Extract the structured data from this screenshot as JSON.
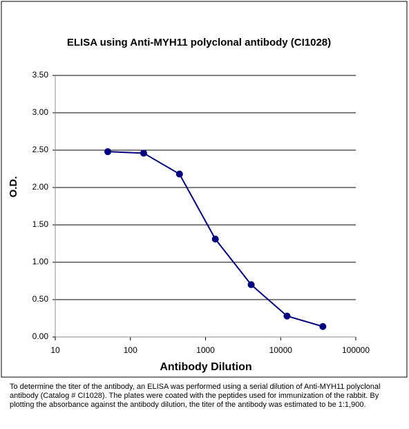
{
  "chart_data": {
    "type": "line",
    "title": "ELISA using Anti-MYH11 polyclonal antibody (CI1028)",
    "x_label": "Antibody Dilution",
    "y_label": "O.D.",
    "x": [
      50,
      150,
      450,
      1350,
      4050,
      12150,
      36450
    ],
    "series": [
      {
        "name": "O.D.",
        "color": "#000080",
        "values": [
          2.48,
          2.46,
          2.18,
          1.31,
          0.7,
          0.28,
          0.14
        ]
      }
    ],
    "xlim": [
      10,
      100000
    ],
    "xticks": [
      10,
      100,
      1000,
      10000,
      100000
    ],
    "xscale": "log",
    "ylim": [
      0,
      3.5
    ],
    "yticks": [
      {
        "value": 0,
        "label": "0.00"
      },
      {
        "value": 0.5,
        "label": "0.50"
      },
      {
        "value": 1,
        "label": "1.00"
      },
      {
        "value": 1.5,
        "label": "1.50"
      },
      {
        "value": 2,
        "label": "2.00"
      },
      {
        "value": 2.5,
        "label": "2.50"
      },
      {
        "value": 3,
        "label": "3.00"
      },
      {
        "value": 3.5,
        "label": "3.50"
      }
    ],
    "grid": true,
    "note": "To determine the titer of the antibody, an ELISA was performed using a serial dilution of Anti-MYH11 polyclonal antibody (Catalog # CI1028). The plates were coated with the peptides used for immunization of the rabbit. By plotting the absorbance against the antibody dilution, the titer of the antibody was estimated to be 1:1,900."
  }
}
